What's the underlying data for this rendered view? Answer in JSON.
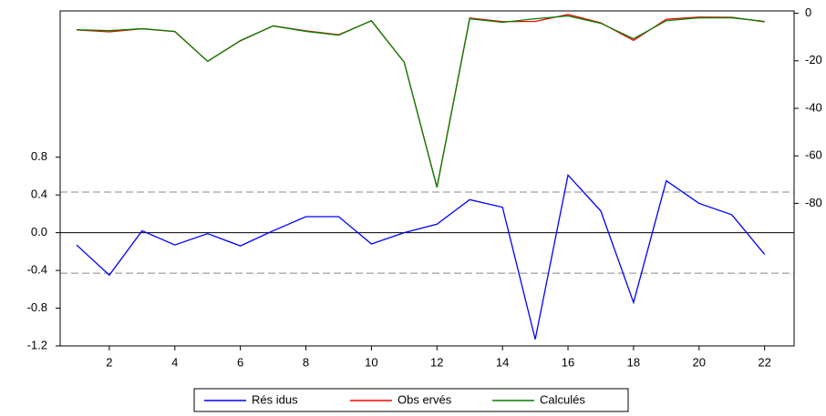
{
  "chart_data": {
    "type": "line",
    "x": [
      1,
      2,
      3,
      4,
      5,
      6,
      7,
      8,
      9,
      10,
      11,
      12,
      13,
      14,
      15,
      16,
      17,
      18,
      19,
      20,
      21,
      22
    ],
    "xlim": [
      0.5,
      22.9
    ],
    "xticks": [
      2,
      4,
      6,
      8,
      10,
      12,
      14,
      16,
      18,
      20,
      22
    ],
    "ylim": [
      -1.2,
      2.35
    ],
    "yticks": [
      -1.2,
      -0.8,
      -0.4,
      0.0,
      0.4,
      0.8
    ],
    "y2lim": [
      -140,
      1
    ],
    "y2ticks": [
      -80,
      -60,
      -40,
      -20,
      0
    ],
    "reference_lines": [
      {
        "value": 0.43,
        "dashed": true
      },
      {
        "value": 0,
        "dashed": false
      },
      {
        "value": -0.43,
        "dashed": true
      }
    ],
    "series": [
      {
        "name": "Rés idus",
        "color": "#0000ff",
        "values": [
          -0.13,
          -0.45,
          0.02,
          -0.13,
          -0.01,
          -0.14,
          0.02,
          0.17,
          0.17,
          -0.12,
          0.0,
          0.09,
          0.35,
          0.27,
          -1.13,
          0.61,
          0.23,
          -0.74,
          0.55,
          0.31,
          0.19,
          -0.23
        ]
      },
      {
        "name": "Obs ervés",
        "color": "#ff0000",
        "axis": "y2",
        "values": [
          -7.0,
          -7.8,
          -6.5,
          -7.7,
          -20.2,
          -11.6,
          -5.3,
          -7.4,
          -9.0,
          -3.2,
          -20.6,
          -73.2,
          -2.0,
          -3.5,
          -3.4,
          -0.5,
          -4.0,
          -11.4,
          -2.5,
          -1.6,
          -1.7,
          -3.6
        ]
      },
      {
        "name": "Calculés",
        "color": "#008000",
        "axis": "y2",
        "values": [
          -6.9,
          -7.3,
          -6.5,
          -7.6,
          -20.2,
          -11.5,
          -5.3,
          -7.6,
          -9.2,
          -3.1,
          -20.6,
          -73.3,
          -2.3,
          -3.8,
          -2.3,
          -1.1,
          -4.2,
          -10.7,
          -3.1,
          -1.9,
          -1.9,
          -3.4
        ]
      }
    ]
  }
}
